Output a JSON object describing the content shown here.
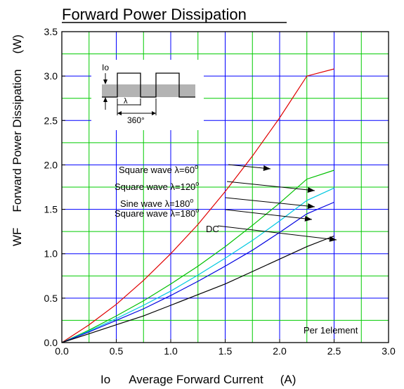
{
  "chart_data": {
    "type": "line",
    "title": "Forward Power Dissipation",
    "ylabel_symbol": "WF",
    "ylabel": "Forward Power Dissipation",
    "yunit": "(W)",
    "xlabel_symbol": "Io",
    "xlabel": "Average Forward Current",
    "xunit": "(A)",
    "xlim": [
      0,
      3.0
    ],
    "ylim": [
      0,
      3.5
    ],
    "xticks": [
      "0.0",
      "0.5",
      "1.0",
      "1.5",
      "2.0",
      "2.5",
      "3.0"
    ],
    "yticks": [
      "0.0",
      "0.5",
      "1.0",
      "1.5",
      "2.0",
      "2.5",
      "3.0",
      "3.5"
    ],
    "grid": true,
    "x_gridlines": [
      0.25,
      0.5,
      0.75,
      1.0,
      1.25,
      1.5,
      1.75,
      2.0,
      2.25,
      2.5,
      2.75
    ],
    "y_gridlines": [
      0.25,
      0.5,
      0.75,
      1.0,
      1.25,
      1.5,
      1.75,
      2.0,
      2.25,
      2.5,
      2.75,
      3.0,
      3.25
    ],
    "series": [
      {
        "name": "Square wave  λ=60°",
        "color": "#e00000",
        "x": [
          0,
          0.25,
          0.5,
          0.75,
          1.0,
          1.25,
          1.5,
          1.75,
          2.0,
          2.25,
          2.5
        ],
        "y": [
          0,
          0.2,
          0.43,
          0.7,
          1.0,
          1.33,
          1.7,
          2.1,
          2.53,
          3.0,
          3.08
        ]
      },
      {
        "name": "Square wave  λ=120°",
        "color": "#00c000",
        "x": [
          0,
          0.25,
          0.5,
          0.75,
          1.0,
          1.25,
          1.5,
          1.75,
          2.0,
          2.25,
          2.5
        ],
        "y": [
          0,
          0.14,
          0.3,
          0.47,
          0.66,
          0.86,
          1.08,
          1.32,
          1.57,
          1.84,
          1.94
        ]
      },
      {
        "name": "Sine wave  λ=180°",
        "color": "#00c8e0",
        "x": [
          0,
          0.25,
          0.5,
          0.75,
          1.0,
          1.25,
          1.5,
          1.75,
          2.0,
          2.25,
          2.5
        ],
        "y": [
          0,
          0.13,
          0.27,
          0.42,
          0.58,
          0.76,
          0.95,
          1.15,
          1.37,
          1.6,
          1.74
        ]
      },
      {
        "name": "Square wave  λ=180°",
        "color": "#0000e0",
        "x": [
          0,
          0.25,
          0.5,
          0.75,
          1.0,
          1.25,
          1.5,
          1.75,
          2.0,
          2.25,
          2.5
        ],
        "y": [
          0,
          0.12,
          0.25,
          0.38,
          0.53,
          0.69,
          0.86,
          1.04,
          1.24,
          1.45,
          1.58
        ]
      },
      {
        "name": "DC",
        "color": "#000000",
        "x": [
          0,
          0.25,
          0.5,
          0.75,
          1.0,
          1.25,
          1.5,
          1.75,
          2.0,
          2.25,
          2.5
        ],
        "y": [
          0,
          0.1,
          0.2,
          0.3,
          0.42,
          0.54,
          0.66,
          0.8,
          0.94,
          1.08,
          1.2
        ]
      }
    ],
    "legend_labels": [
      {
        "prefix": "Square wave  λ=",
        "value": "60",
        "sup": "o"
      },
      {
        "prefix": "Square wave  λ=",
        "value": "120",
        "sup": "o"
      },
      {
        "prefix": "Sine wave  λ=",
        "value": "180",
        "sup": "o"
      },
      {
        "prefix": "Square wave  λ=",
        "value": "180",
        "sup": "o"
      },
      {
        "prefix": "DC",
        "value": "",
        "sup": ""
      }
    ],
    "annotation": "Per 1element",
    "inset": {
      "current_label": "Io",
      "conduction_label": "λ",
      "period_label": "360°"
    }
  }
}
